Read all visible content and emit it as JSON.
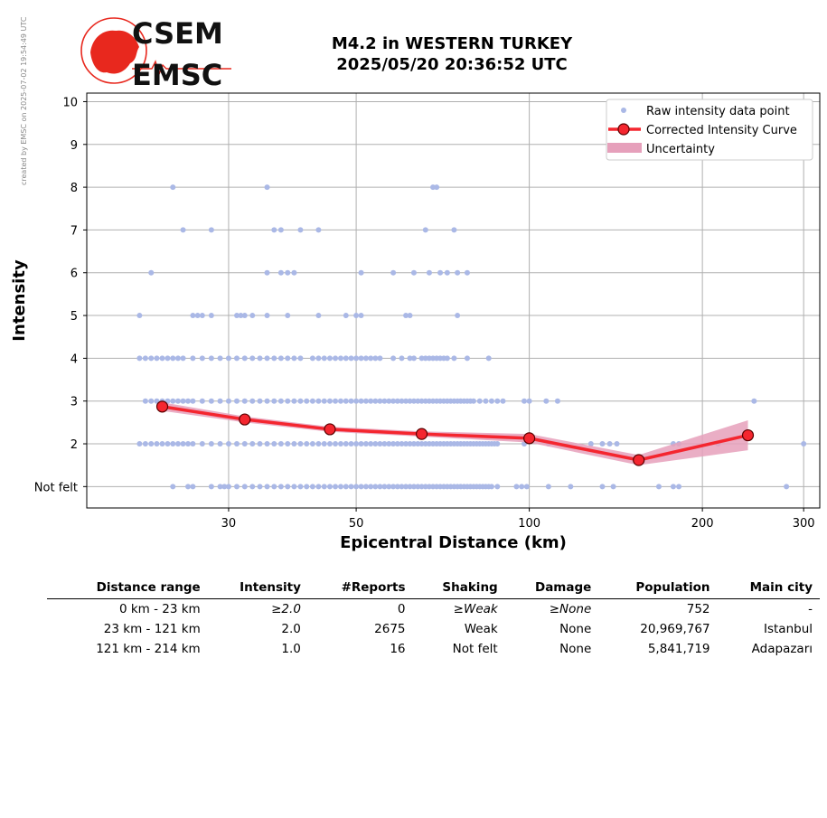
{
  "credit": "created by EMSC on 2025-07-02 19:54:49 UTC",
  "logo": {
    "line1": "CSEM",
    "line2": "EMSC",
    "color": "#e8281e"
  },
  "title": {
    "line1": "M4.2 in WESTERN TURKEY",
    "line2": "2025/05/20 20:36:52 UTC"
  },
  "chart_data": {
    "type": "scatter",
    "xlabel": "Epicentral Distance (km)",
    "ylabel": "Intensity",
    "x_scale": "log",
    "xlim": [
      17,
      320
    ],
    "ylim": [
      0.5,
      10.2
    ],
    "x_ticks": [
      30,
      50,
      100,
      200,
      300
    ],
    "y_ticks": [
      {
        "value": 1,
        "label": "Not felt"
      },
      {
        "value": 2,
        "label": "2"
      },
      {
        "value": 3,
        "label": "3"
      },
      {
        "value": 4,
        "label": "4"
      },
      {
        "value": 5,
        "label": "5"
      },
      {
        "value": 6,
        "label": "6"
      },
      {
        "value": 7,
        "label": "7"
      },
      {
        "value": 8,
        "label": "8"
      },
      {
        "value": 9,
        "label": "9"
      },
      {
        "value": 10,
        "label": "10"
      }
    ],
    "grid": true,
    "legend_position": "top-right",
    "legend": [
      "Raw intensity data point",
      "Corrected Intensity Curve",
      "Uncertainty"
    ],
    "colors": {
      "raw": "#aab8e6",
      "curve": "#f4262f",
      "marker_edge": "#5a0000",
      "uncertainty": "#e6a0bb"
    },
    "curve": {
      "x": [
        23,
        32,
        45,
        65,
        100,
        155,
        240
      ],
      "y": [
        2.87,
        2.57,
        2.34,
        2.23,
        2.13,
        1.62,
        2.2
      ]
    },
    "uncertainty": {
      "x": [
        23,
        32,
        45,
        65,
        100,
        155,
        240
      ],
      "lower": [
        2.77,
        2.5,
        2.28,
        2.17,
        2.03,
        1.5,
        1.85
      ],
      "upper": [
        2.97,
        2.64,
        2.4,
        2.29,
        2.23,
        1.74,
        2.55
      ]
    },
    "raw_points": [
      {
        "y": 1,
        "x": [
          24,
          25.5,
          26,
          28,
          29,
          29.5,
          30,
          31,
          32,
          33,
          34,
          35,
          36,
          37,
          38,
          39,
          40,
          41,
          42,
          43,
          44,
          45,
          46,
          47,
          48,
          49,
          50,
          51,
          52,
          53,
          54,
          55,
          56,
          57,
          58,
          59,
          60,
          61,
          62,
          63,
          64,
          65,
          66,
          67,
          68,
          69,
          70,
          71,
          72,
          73,
          74,
          75,
          76,
          77,
          78,
          79,
          80,
          81,
          82,
          83,
          84,
          85,
          86,
          88,
          95,
          97,
          99,
          108,
          118,
          134,
          140,
          168,
          178,
          182,
          280
        ]
      },
      {
        "y": 2,
        "x": [
          21,
          21.5,
          22,
          22.5,
          23,
          23.5,
          24,
          24.5,
          25,
          25.5,
          26,
          27,
          28,
          29,
          30,
          31,
          32,
          33,
          34,
          35,
          36,
          37,
          38,
          39,
          40,
          41,
          42,
          43,
          44,
          45,
          46,
          47,
          48,
          49,
          50,
          51,
          52,
          53,
          54,
          55,
          56,
          57,
          58,
          59,
          60,
          61,
          62,
          63,
          64,
          65,
          66,
          67,
          68,
          69,
          70,
          71,
          72,
          73,
          74,
          75,
          76,
          77,
          78,
          79,
          80,
          81,
          82,
          83,
          84,
          85,
          86,
          87,
          88,
          98,
          108,
          128,
          134,
          138,
          142,
          178,
          182,
          213,
          300
        ]
      },
      {
        "y": 3,
        "x": [
          21.5,
          22,
          22.5,
          23,
          23.5,
          24,
          24.5,
          25,
          25.5,
          26,
          27,
          28,
          29,
          30,
          31,
          32,
          33,
          34,
          35,
          36,
          37,
          38,
          39,
          40,
          41,
          42,
          43,
          44,
          45,
          46,
          47,
          48,
          49,
          50,
          51,
          52,
          53,
          54,
          55,
          56,
          57,
          58,
          59,
          60,
          61,
          62,
          63,
          64,
          65,
          66,
          67,
          68,
          69,
          70,
          71,
          72,
          73,
          74,
          75,
          76,
          77,
          78,
          79,
          80,
          82,
          84,
          86,
          88,
          90,
          98,
          100,
          107,
          112,
          246
        ]
      },
      {
        "y": 4,
        "x": [
          21,
          21.5,
          22,
          22.5,
          23,
          23.5,
          24,
          24.5,
          25,
          26,
          27,
          28,
          29,
          30,
          31,
          32,
          33,
          34,
          35,
          36,
          37,
          38,
          39,
          40,
          42,
          43,
          44,
          45,
          46,
          47,
          48,
          49,
          50,
          51,
          52,
          53,
          54,
          55,
          58,
          60,
          62,
          63,
          65,
          66,
          67,
          68,
          69,
          70,
          71,
          72,
          74,
          78,
          85
        ]
      },
      {
        "y": 5,
        "x": [
          21,
          26,
          26.5,
          27,
          28,
          31,
          31.5,
          32,
          33,
          35,
          38,
          43,
          48,
          50,
          51,
          61,
          62,
          75
        ]
      },
      {
        "y": 6,
        "x": [
          22,
          35,
          37,
          38,
          39,
          51,
          58,
          63,
          67,
          70,
          72,
          75,
          78
        ]
      },
      {
        "y": 7,
        "x": [
          25,
          28,
          36,
          37,
          40,
          43,
          66,
          74
        ]
      },
      {
        "y": 8,
        "x": [
          24,
          35,
          68,
          69
        ]
      }
    ]
  },
  "table": {
    "headers": [
      "Distance range",
      "Intensity",
      "#Reports",
      "Shaking",
      "Damage",
      "Population",
      "Main city"
    ],
    "rows": [
      [
        "0 km -   23 km",
        "≥2.0",
        "0",
        "≥Weak",
        "≥None",
        "752",
        "-"
      ],
      [
        "23 km -  121 km",
        "2.0",
        "2675",
        "Weak",
        "None",
        "20,969,767",
        "Istanbul"
      ],
      [
        "121 km -  214 km",
        "1.0",
        "16",
        "Not felt",
        "None",
        "5,841,719",
        "Adapazarı"
      ]
    ]
  }
}
